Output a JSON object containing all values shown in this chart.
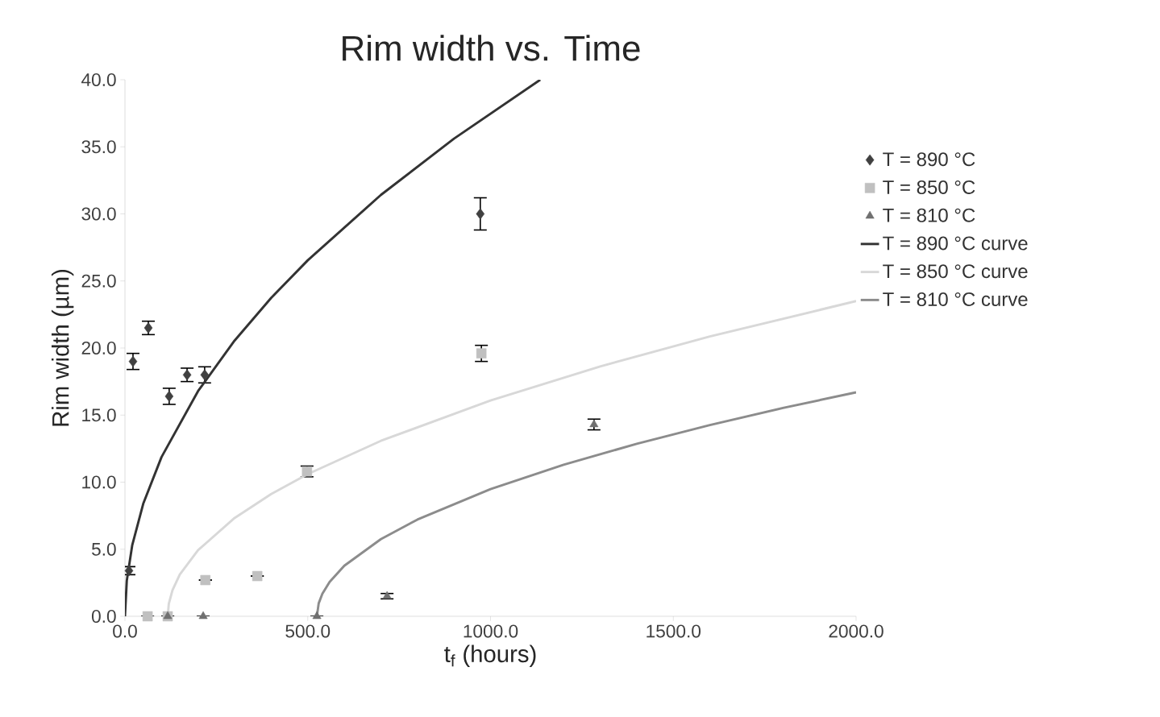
{
  "chart_data": {
    "type": "scatter",
    "title": "Rim width vs. Time",
    "xlabel": "t$_{f}$ (hours)",
    "ylabel": "Rim width (µm)",
    "xlim": [
      0,
      2000
    ],
    "ylim": [
      0,
      40
    ],
    "xticks": [
      {
        "value": 0,
        "label": "0.0"
      },
      {
        "value": 500,
        "label": "500.0"
      },
      {
        "value": 1000,
        "label": "1000.0"
      },
      {
        "value": 1500,
        "label": "1500.0"
      },
      {
        "value": 2000,
        "label": "2000.0"
      }
    ],
    "yticks": [
      {
        "value": 0,
        "label": "0.0"
      },
      {
        "value": 5,
        "label": "5.0"
      },
      {
        "value": 10,
        "label": "10.0"
      },
      {
        "value": 15,
        "label": "15.0"
      },
      {
        "value": 20,
        "label": "20.0"
      },
      {
        "value": 25,
        "label": "25.0"
      },
      {
        "value": 30,
        "label": "30.0"
      },
      {
        "value": 35,
        "label": "35.0"
      },
      {
        "value": 40,
        "label": "40.0"
      }
    ],
    "grid": false,
    "legend": "right",
    "series": [
      {
        "name": "T = 890 °C",
        "marker": "diamond",
        "color": "#404040",
        "x": [
          11,
          22,
          64,
          121,
          170,
          218,
          972
        ],
        "values": [
          3.4,
          19.0,
          21.5,
          16.4,
          18.0,
          18.0,
          30.0
        ],
        "errors": [
          0.3,
          0.6,
          0.5,
          0.6,
          0.5,
          0.6,
          1.2
        ]
      },
      {
        "name": "T = 850 °C",
        "marker": "square",
        "color": "#c0c0c0",
        "x": [
          62,
          117,
          220,
          362,
          498,
          975
        ],
        "values": [
          0,
          0,
          2.7,
          3.0,
          10.8,
          19.6
        ],
        "errors": [
          null,
          null,
          null,
          null,
          0.4,
          0.6
        ]
      },
      {
        "name": "T = 810 °C",
        "marker": "triangle",
        "color": "#707070",
        "x": [
          117,
          214,
          525,
          717,
          1283
        ],
        "values": [
          0,
          0,
          0,
          1.5,
          14.3
        ],
        "errors": [
          null,
          null,
          null,
          0.2,
          0.4
        ]
      },
      {
        "name": "T = 890 °C curve",
        "type": "line",
        "marker": "none",
        "color": "#333333",
        "x": [
          0,
          5,
          20,
          50,
          100,
          200,
          300,
          400,
          500,
          700,
          900,
          1136
        ],
        "values": [
          0,
          2.65,
          5.31,
          8.39,
          11.87,
          16.79,
          20.56,
          23.74,
          26.54,
          31.41,
          35.61,
          40.0
        ]
      },
      {
        "name": "T = 850 °C curve",
        "type": "line",
        "marker": "none",
        "color": "#d8d8d8",
        "x": [
          117,
          120,
          130,
          150,
          200,
          300,
          400,
          500,
          700,
          1000,
          1300,
          1600,
          2000
        ],
        "values": [
          0,
          0.94,
          1.95,
          3.11,
          4.93,
          7.33,
          9.11,
          10.6,
          13.08,
          16.09,
          18.63,
          20.86,
          23.5
        ]
      },
      {
        "name": "T = 810 °C curve",
        "type": "line",
        "marker": "none",
        "color": "#8c8c8c",
        "x": [
          525,
          530,
          540,
          560,
          600,
          700,
          800,
          1000,
          1200,
          1400,
          1600,
          1800,
          2000
        ],
        "values": [
          0,
          0.97,
          1.68,
          2.57,
          3.77,
          5.75,
          7.21,
          9.48,
          11.3,
          12.86,
          14.26,
          15.53,
          16.7
        ]
      }
    ]
  }
}
